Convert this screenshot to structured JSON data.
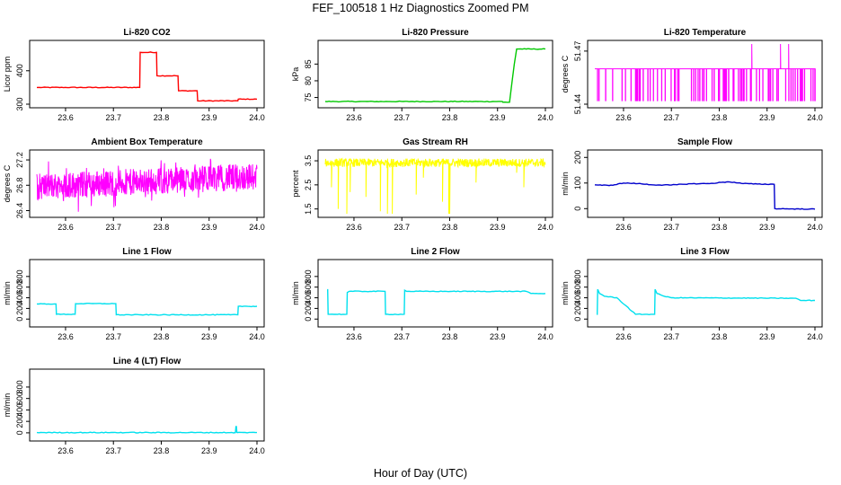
{
  "title": "FEF_100518  1 Hz Diagnostics Zoomed PM",
  "xlabel": "Hour of Day (UTC)",
  "chart_data": [
    {
      "type": "line",
      "title": "Li-820 CO2",
      "ylabel": "Licor ppm",
      "xlim": [
        23.54,
        24.0
      ],
      "ylim": [
        300,
        480
      ],
      "xticks": [
        23.6,
        23.7,
        23.8,
        23.9,
        24.0
      ],
      "xtick_labels": [
        "23.6",
        "23.7",
        "23.8",
        "23.9",
        "24.0"
      ],
      "yticks": [
        300,
        400
      ],
      "ytick_labels": [
        "300",
        "400"
      ],
      "color": "#ff0000",
      "series": [
        {
          "x": [
            23.54,
            23.755,
            23.756,
            23.79,
            23.791,
            23.835,
            23.836,
            23.875,
            23.876,
            23.96,
            23.961,
            24.0
          ],
          "y": [
            350,
            350,
            455,
            455,
            385,
            385,
            340,
            340,
            310,
            310,
            315,
            315
          ]
        }
      ]
    },
    {
      "type": "line",
      "title": "Li-820 Pressure",
      "ylabel": "kPa",
      "xlim": [
        23.54,
        24.0
      ],
      "ylim": [
        73,
        91
      ],
      "xticks": [
        23.6,
        23.7,
        23.8,
        23.9,
        24.0
      ],
      "xtick_labels": [
        "23.6",
        "23.7",
        "23.8",
        "23.9",
        "24.0"
      ],
      "yticks": [
        75,
        80,
        85
      ],
      "ytick_labels": [
        "75",
        "80",
        "85"
      ],
      "color": "#00c800",
      "series": [
        {
          "x": [
            23.54,
            23.91,
            23.911,
            23.925,
            23.935,
            23.94,
            23.96,
            24.0
          ],
          "y": [
            73.8,
            73.8,
            73.6,
            73.6,
            85,
            89.5,
            89.5,
            89.5
          ]
        }
      ]
    },
    {
      "type": "line",
      "title": "Li-820 Temperature",
      "ylabel": "degrees C",
      "xlim": [
        23.54,
        24.0
      ],
      "ylim": [
        51.44,
        51.474
      ],
      "xticks": [
        23.6,
        23.7,
        23.8,
        23.9,
        24.0
      ],
      "xtick_labels": [
        "23.6",
        "23.7",
        "23.8",
        "23.9",
        "24.0"
      ],
      "yticks": [
        51.44,
        51.47
      ],
      "ytick_labels": [
        "51.44",
        "51.47"
      ],
      "color": "#ff00ff",
      "series": [
        {
          "x": [
            23.54,
            24.0
          ],
          "y": [
            51.46,
            51.46
          ]
        }
      ]
    },
    {
      "type": "line",
      "title": "Ambient Box Temperature",
      "ylabel": "degrees C",
      "xlim": [
        23.54,
        24.0
      ],
      "ylim": [
        26.35,
        27.3
      ],
      "xticks": [
        23.6,
        23.7,
        23.8,
        23.9,
        24.0
      ],
      "xtick_labels": [
        "23.6",
        "23.7",
        "23.8",
        "23.9",
        "24.0"
      ],
      "yticks": [
        26.4,
        26.8,
        27.2
      ],
      "ytick_labels": [
        "26.4",
        "26.8",
        "27.2"
      ],
      "color": "#ff00ff",
      "series": [
        {
          "x": [
            23.54,
            24.0
          ],
          "y": [
            26.75,
            26.95
          ]
        }
      ]
    },
    {
      "type": "line",
      "title": "Gas Stream RH",
      "ylabel": "percent",
      "xlim": [
        23.54,
        24.0
      ],
      "ylim": [
        1.3,
        3.8
      ],
      "xticks": [
        23.6,
        23.7,
        23.8,
        23.9,
        24.0
      ],
      "xtick_labels": [
        "23.6",
        "23.7",
        "23.8",
        "23.9",
        "24.0"
      ],
      "yticks": [
        1.5,
        2.5,
        3.5
      ],
      "ytick_labels": [
        "1.5",
        "2.5",
        "3.5"
      ],
      "color": "#ffff00",
      "series": [
        {
          "x": [
            23.54,
            24.0
          ],
          "y": [
            3.4,
            3.4
          ]
        }
      ]
    },
    {
      "type": "line",
      "title": "Sample Flow",
      "ylabel": "ml/min",
      "xlim": [
        23.54,
        24.0
      ],
      "ylim": [
        -20,
        215
      ],
      "xticks": [
        23.6,
        23.7,
        23.8,
        23.9,
        24.0
      ],
      "xtick_labels": [
        "23.6",
        "23.7",
        "23.8",
        "23.9",
        "24.0"
      ],
      "yticks": [
        0,
        100,
        200
      ],
      "ytick_labels": [
        "0",
        "100",
        "200"
      ],
      "color": "#0000cc",
      "series": [
        {
          "x": [
            23.54,
            23.57,
            23.6,
            23.63,
            23.66,
            23.7,
            23.74,
            23.78,
            23.82,
            23.85,
            23.88,
            23.915,
            23.916,
            23.95,
            24.0
          ],
          "y": [
            93,
            90,
            100,
            98,
            93,
            92,
            97,
            98,
            105,
            98,
            96,
            95,
            0,
            -1,
            -2
          ]
        }
      ]
    },
    {
      "type": "line",
      "title": "Line 1 Flow",
      "ylabel": "ml/min",
      "xlim": [
        23.54,
        24.0
      ],
      "ylim": [
        -80,
        1050
      ],
      "xticks": [
        23.6,
        23.7,
        23.8,
        23.9,
        24.0
      ],
      "xtick_labels": [
        "23.6",
        "23.7",
        "23.8",
        "23.9",
        "24.0"
      ],
      "yticks": [
        0,
        200,
        400,
        600,
        800
      ],
      "ytick_labels": [
        "0",
        "200",
        "400",
        "600",
        "800"
      ],
      "color": "#00e0ee",
      "series": [
        {
          "x": [
            23.54,
            23.58,
            23.581,
            23.62,
            23.621,
            23.705,
            23.706,
            23.96,
            23.961,
            24.0
          ],
          "y": [
            285,
            285,
            90,
            90,
            290,
            290,
            80,
            80,
            240,
            240
          ]
        }
      ]
    },
    {
      "type": "line",
      "title": "Line 2 Flow",
      "ylabel": "ml/min",
      "xlim": [
        23.54,
        24.0
      ],
      "ylim": [
        -80,
        1050
      ],
      "xticks": [
        23.6,
        23.7,
        23.8,
        23.9,
        24.0
      ],
      "xtick_labels": [
        "23.6",
        "23.7",
        "23.8",
        "23.9",
        "24.0"
      ],
      "yticks": [
        0,
        200,
        400,
        600,
        800
      ],
      "ytick_labels": [
        "0",
        "200",
        "400",
        "600",
        "800"
      ],
      "color": "#00e0ee",
      "series": [
        {
          "x": [
            23.544,
            23.545,
            23.546,
            23.585,
            23.586,
            23.59,
            23.665,
            23.666,
            23.705,
            23.706,
            23.71,
            23.96,
            23.97,
            24.0
          ],
          "y": [
            550,
            550,
            90,
            90,
            500,
            520,
            520,
            90,
            90,
            540,
            520,
            520,
            480,
            480
          ]
        }
      ]
    },
    {
      "type": "line",
      "title": "Line 3 Flow",
      "ylabel": "ml/min",
      "xlim": [
        23.54,
        24.0
      ],
      "ylim": [
        -80,
        1050
      ],
      "xticks": [
        23.6,
        23.7,
        23.8,
        23.9,
        24.0
      ],
      "xtick_labels": [
        "23.6",
        "23.7",
        "23.8",
        "23.9",
        "24.0"
      ],
      "yticks": [
        0,
        200,
        400,
        600,
        800
      ],
      "ytick_labels": [
        "0",
        "200",
        "400",
        "600",
        "800"
      ],
      "color": "#00e0ee",
      "series": [
        {
          "x": [
            23.544,
            23.545,
            23.546,
            23.55,
            23.56,
            23.585,
            23.586,
            23.625,
            23.626,
            23.665,
            23.666,
            23.67,
            23.685,
            23.7,
            23.96,
            23.97,
            24.0
          ],
          "y": [
            90,
            90,
            560,
            480,
            430,
            400,
            400,
            90,
            90,
            90,
            560,
            480,
            430,
            400,
            390,
            350,
            350
          ]
        }
      ]
    },
    {
      "type": "line",
      "title": "Line 4 (LT) Flow",
      "ylabel": "ml/min",
      "xlim": [
        23.54,
        24.0
      ],
      "ylim": [
        -80,
        1050
      ],
      "xticks": [
        23.6,
        23.7,
        23.8,
        23.9,
        24.0
      ],
      "xtick_labels": [
        "23.6",
        "23.7",
        "23.8",
        "23.9",
        "24.0"
      ],
      "yticks": [
        0,
        200,
        400,
        600,
        800
      ],
      "ytick_labels": [
        "0",
        "200",
        "400",
        "600",
        "800"
      ],
      "color": "#00e0ee",
      "series": [
        {
          "x": [
            23.54,
            23.955,
            23.956,
            23.957,
            23.958,
            23.959,
            24.0
          ],
          "y": [
            5,
            5,
            110,
            110,
            10,
            5,
            5
          ]
        }
      ]
    }
  ]
}
